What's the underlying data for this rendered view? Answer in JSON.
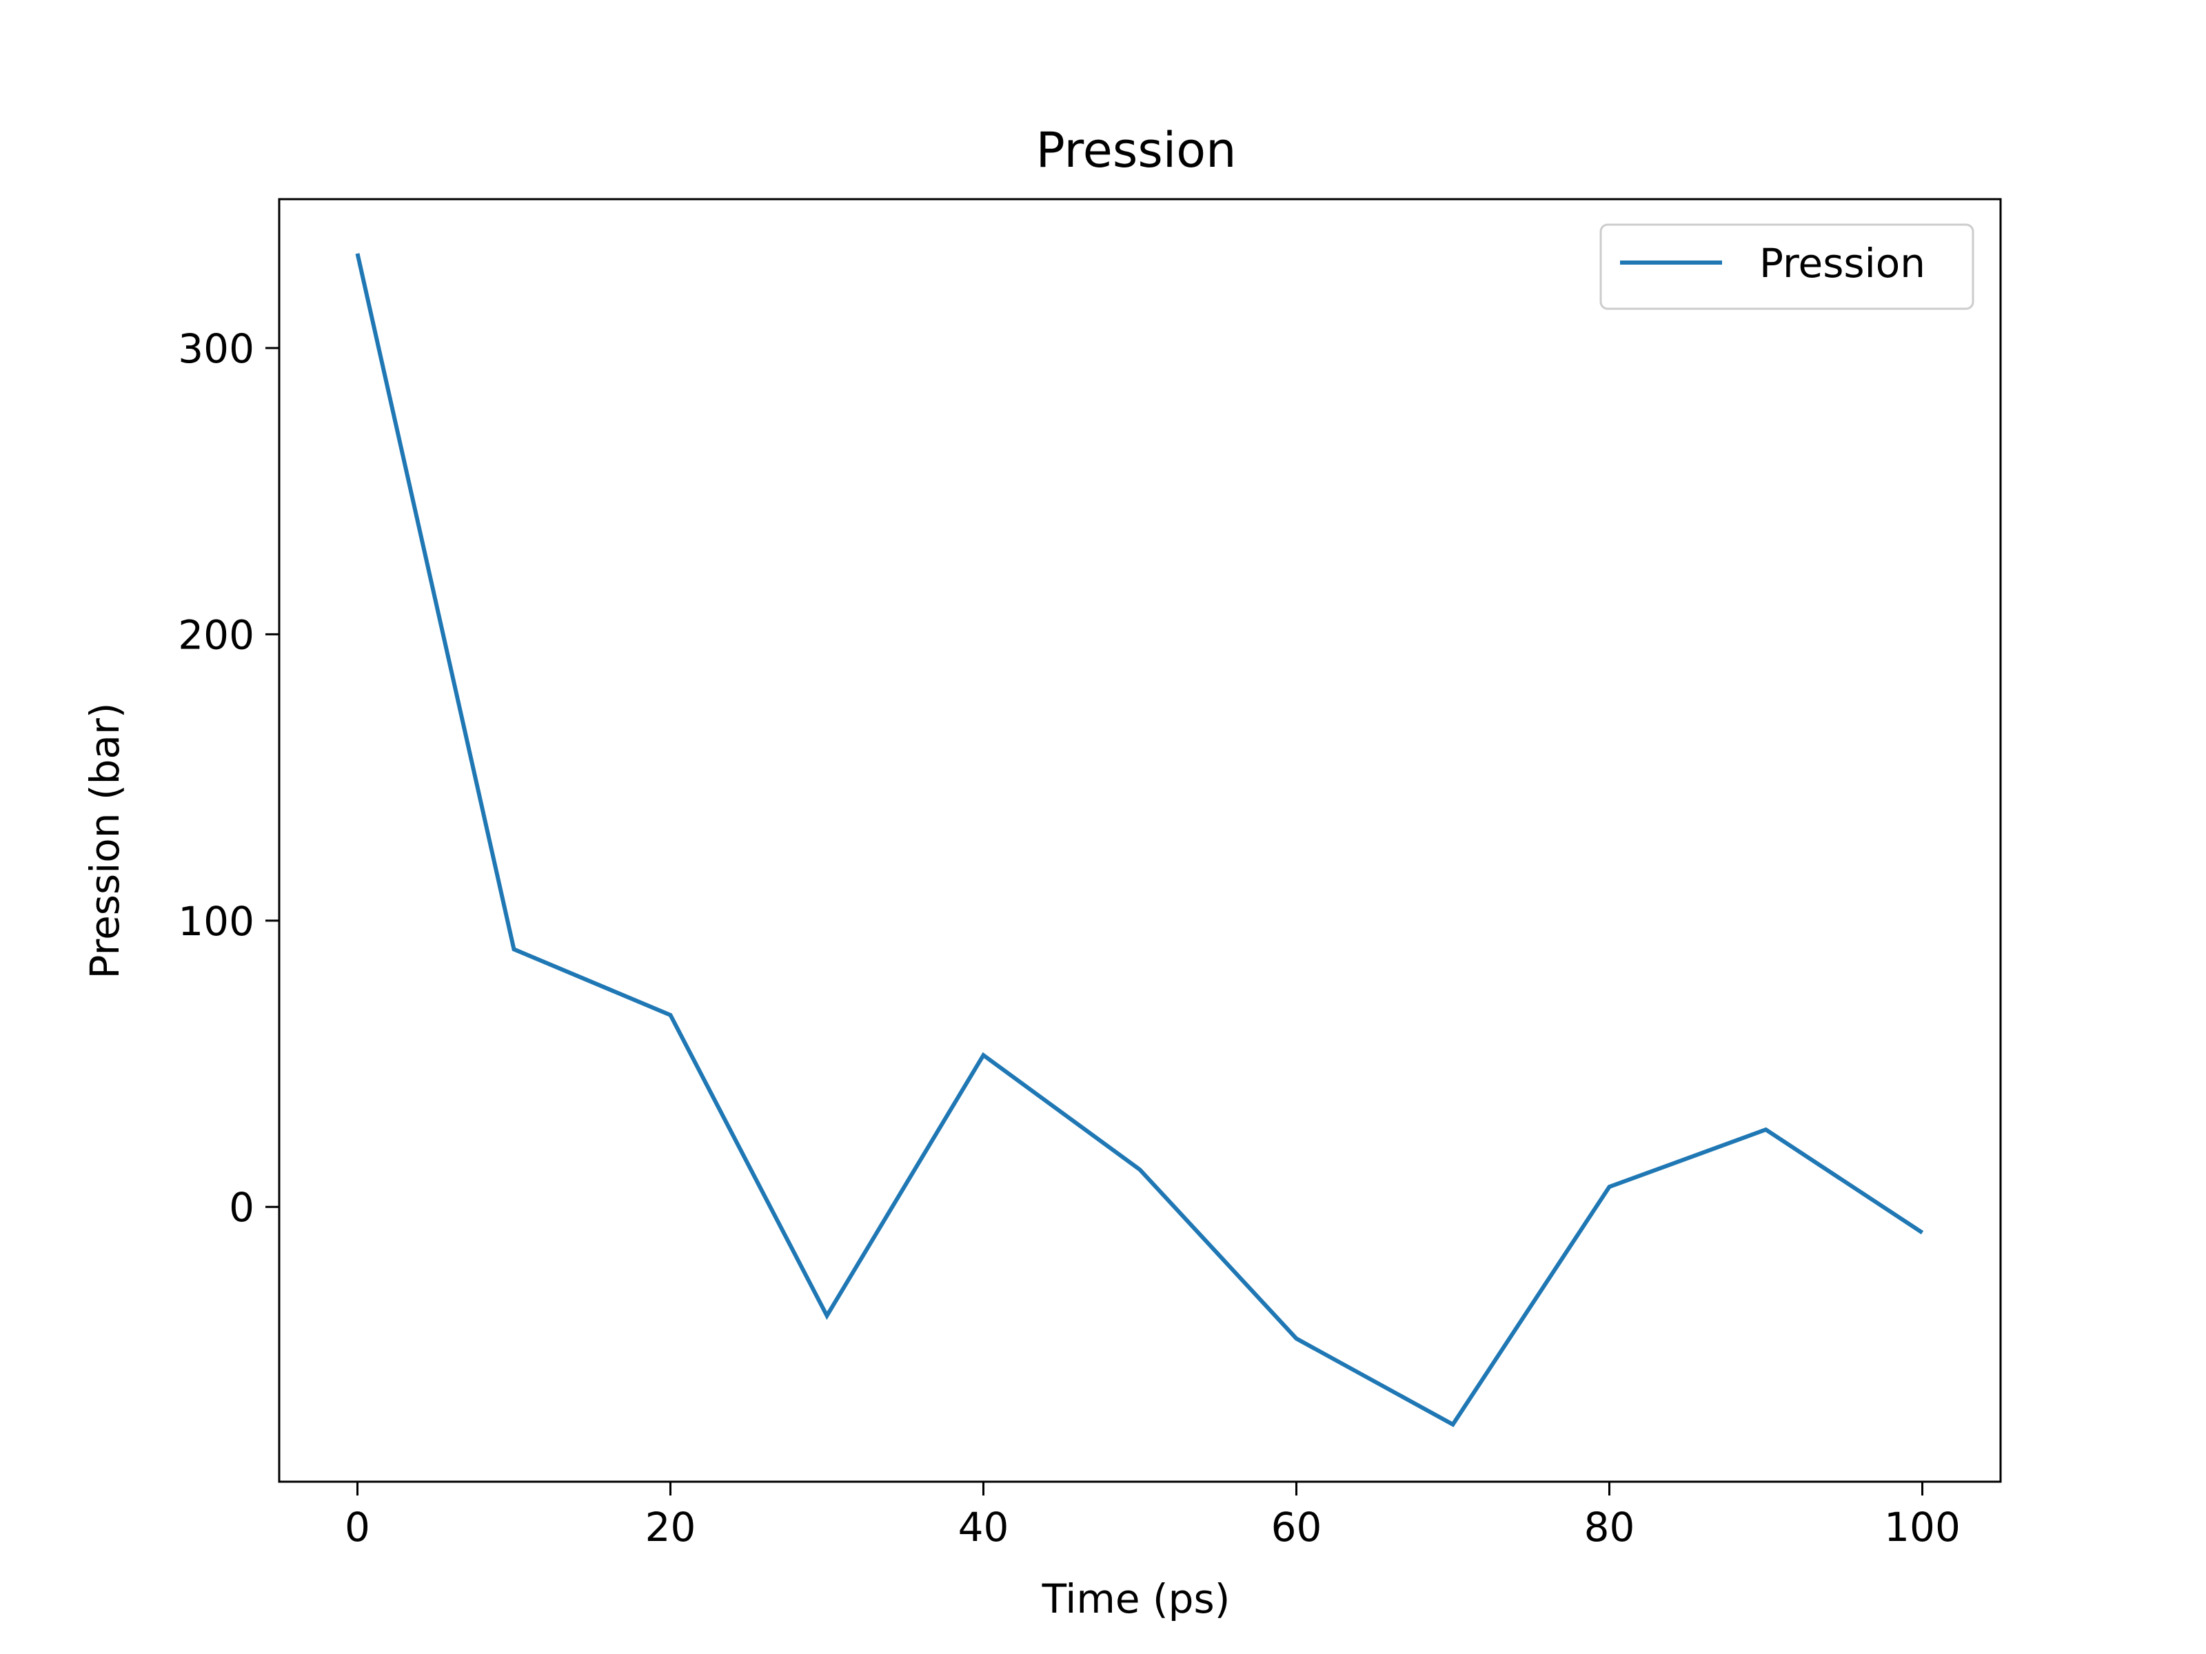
{
  "chart_data": {
    "type": "line",
    "title": "Pression",
    "xlabel": "Time (ps)",
    "ylabel": "Pression (bar)",
    "x": [
      0,
      10,
      20,
      30,
      40,
      50,
      60,
      70,
      80,
      90,
      100
    ],
    "series": [
      {
        "name": "Pression",
        "color": "#1f77b4",
        "values": [
          333,
          90,
          67,
          -38,
          53,
          13,
          -46,
          -76,
          7,
          27,
          -9
        ]
      }
    ],
    "xlim": [
      -5,
      105
    ],
    "ylim": [
      -96,
      352
    ],
    "xticks": [
      0,
      20,
      40,
      60,
      80,
      100
    ],
    "xtick_labels": [
      "0",
      "20",
      "40",
      "60",
      "80",
      "100"
    ],
    "yticks": [
      0,
      100,
      200,
      300
    ],
    "ytick_labels": [
      "0",
      "100",
      "200",
      "300"
    ],
    "grid": false,
    "legend_position": "top-right"
  }
}
